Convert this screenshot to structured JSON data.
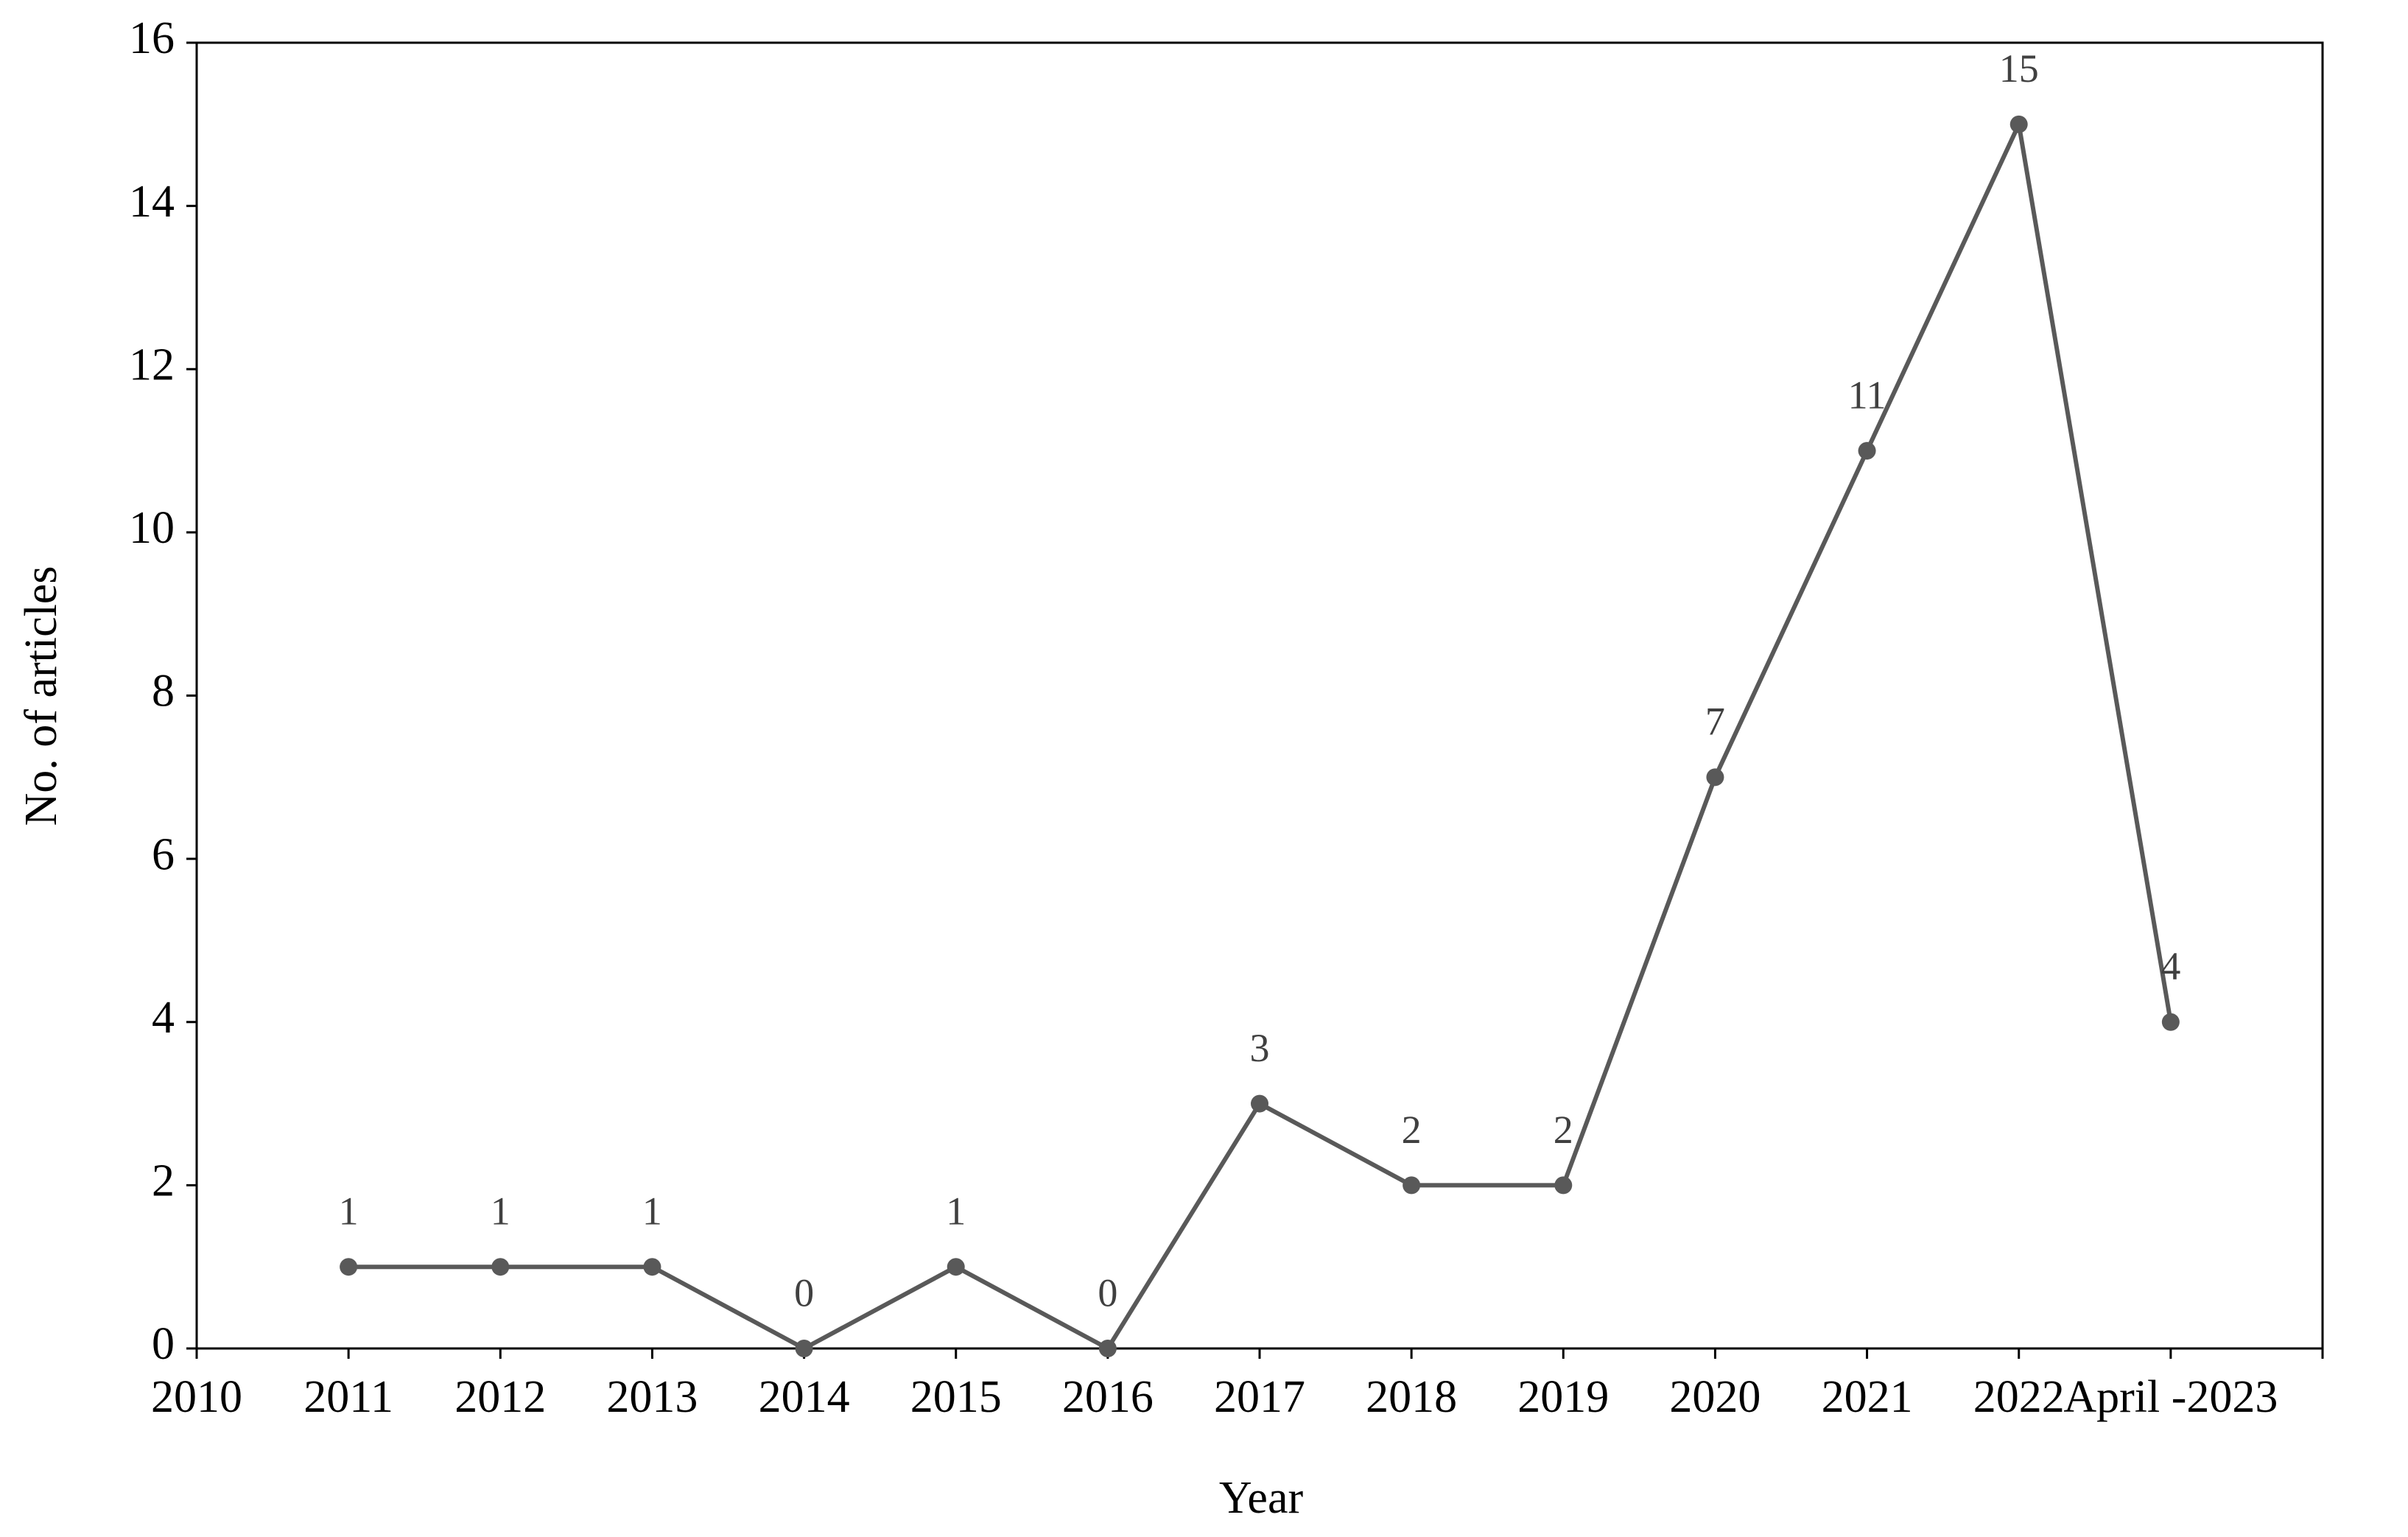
{
  "chart_data": {
    "type": "line",
    "x_label": "Year",
    "y_label": "No. of articles",
    "categories": [
      "2010",
      "2011",
      "2012",
      "2013",
      "2014",
      "2015",
      "2016",
      "2017",
      "2018",
      "2019",
      "2020",
      "2021",
      "2022",
      "April -2023",
      null
    ],
    "values": [
      null,
      1,
      1,
      1,
      0,
      1,
      0,
      3,
      2,
      2,
      7,
      11,
      15,
      4,
      null
    ],
    "color": "#595959",
    "ylim": [
      0,
      16
    ],
    "yticks": [
      0,
      2,
      4,
      6,
      8,
      10,
      12,
      14,
      16
    ]
  }
}
